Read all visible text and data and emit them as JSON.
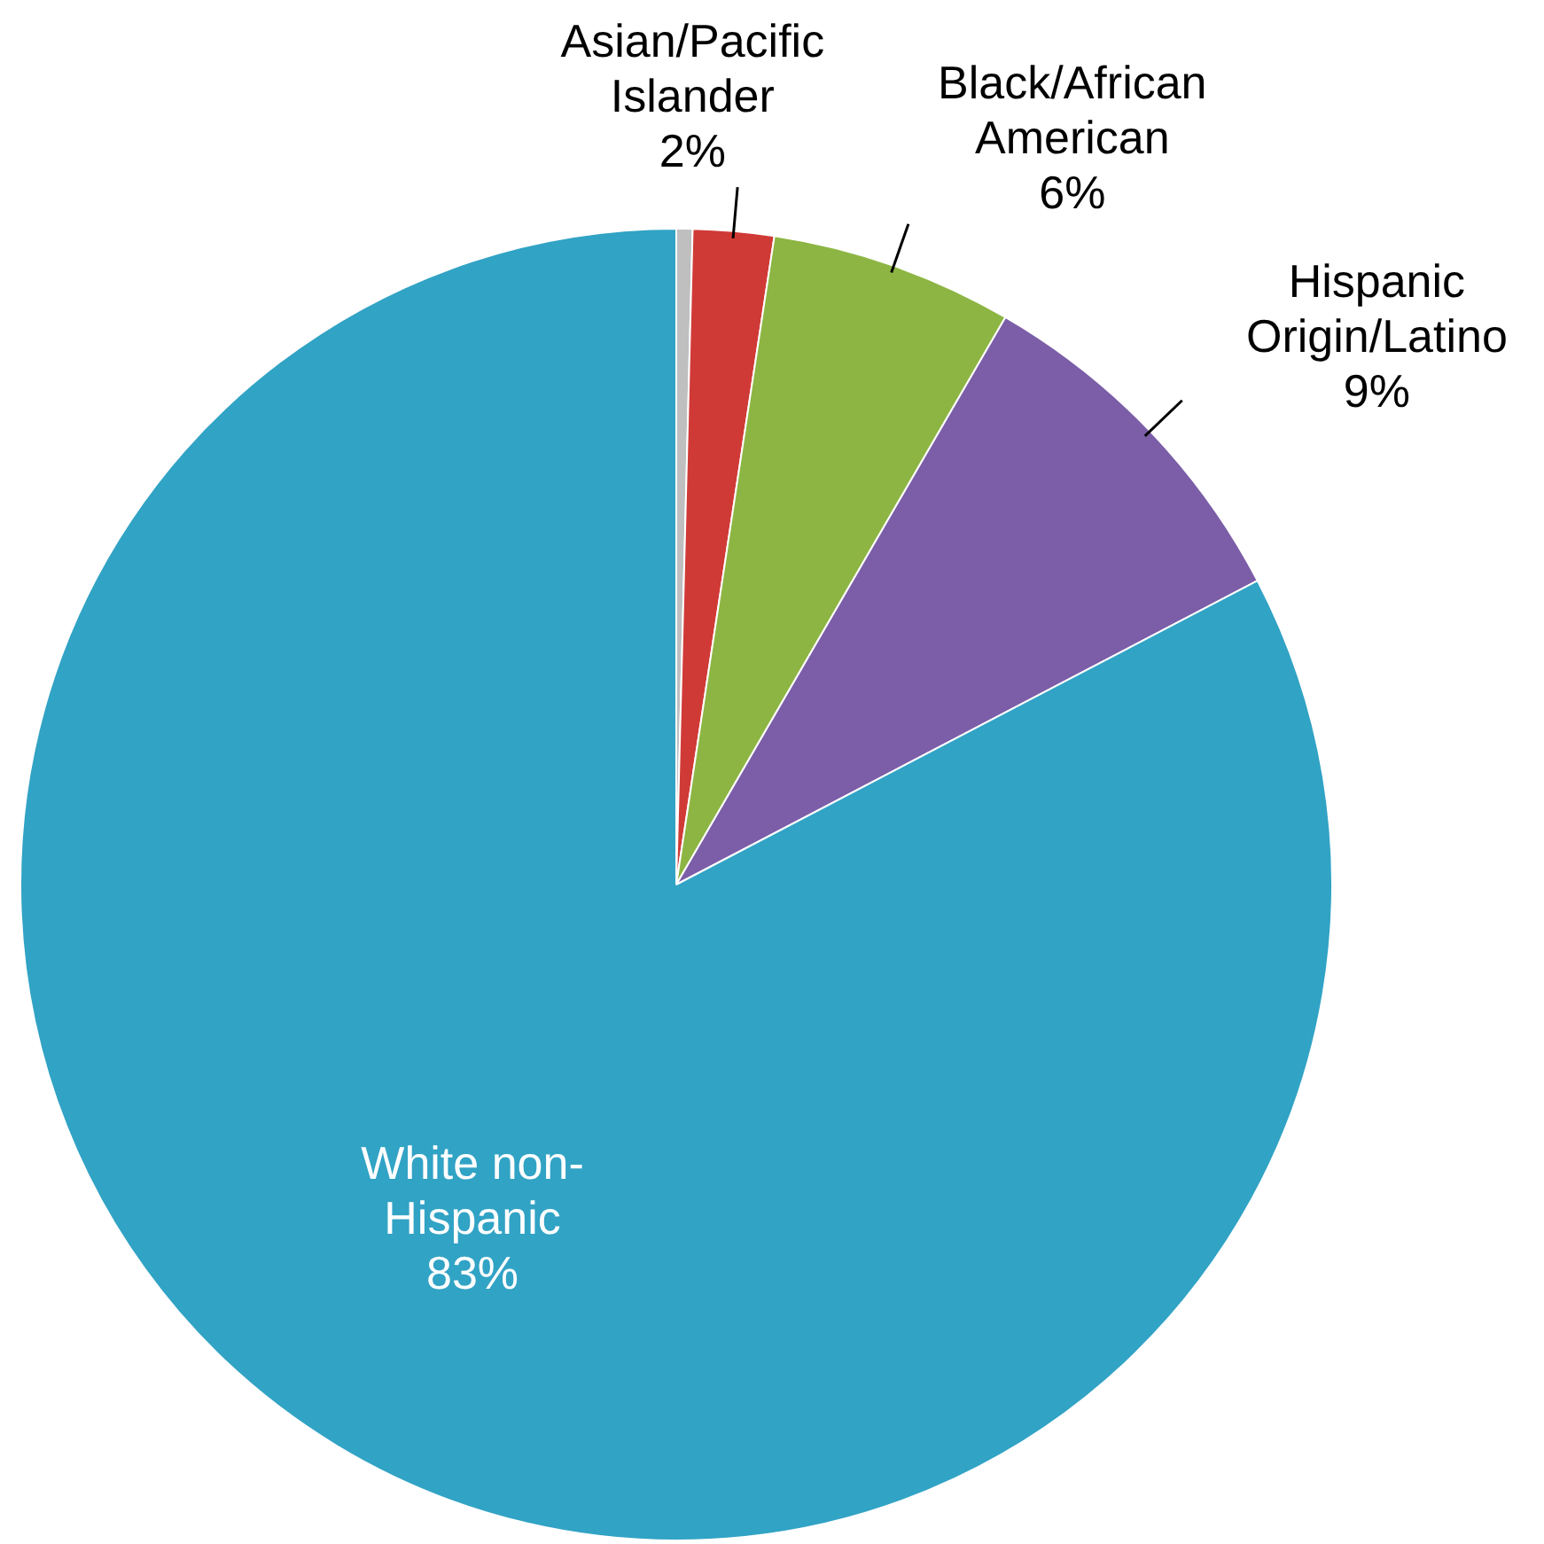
{
  "chart_data": {
    "type": "pie",
    "categories": [
      null,
      "Asian/Pacific Islander",
      "Black/African American",
      "Hispanic Origin/Latino",
      "White non-Hispanic"
    ],
    "values": [
      0.4,
      2,
      6,
      9,
      83
    ],
    "colors": [
      "#bfbfbf",
      "#d03a36",
      "#8db543",
      "#7b5ea7",
      "#31a3c5"
    ],
    "value_labels": [
      null,
      "2%",
      "6%",
      "9%",
      "83%"
    ],
    "legend": false
  }
}
